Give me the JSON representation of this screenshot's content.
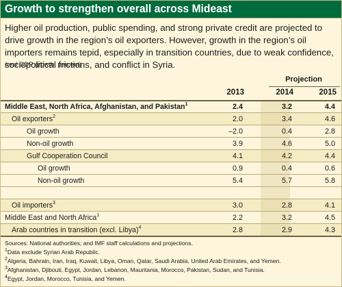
{
  "title": "Growth to strengthen overall across Mideast",
  "intro": "Higher oil production, public spending, and strong private credit are projected to drive growth in the region’s oil exporters. However, growth in the region’s oil importers remains tepid, especially in transition countries, due to weak confidence, sociopolitical frictions, and conflict in Syria.",
  "units": "(real GDP growth, percent)",
  "projection_label": "Projection",
  "years": [
    "2013",
    "2014",
    "2015"
  ],
  "rows": [
    {
      "label": "Middle East, North Africa, Afghanistan, and Pakistan",
      "sup": "1",
      "values": [
        "2.4",
        "3.2",
        "4.4"
      ]
    },
    {
      "label": "Oil exporters",
      "sup": "2",
      "values": [
        "2.0",
        "3.4",
        "4.6"
      ]
    },
    {
      "label": "Oil growth",
      "sup": "",
      "values": [
        "–2.0",
        "0.4",
        "2.8"
      ]
    },
    {
      "label": "Non-oil growth",
      "sup": "",
      "values": [
        "3.9",
        "4.6",
        "5.0"
      ]
    },
    {
      "label": "Gulf Cooperation Council",
      "sup": "",
      "values": [
        "4.1",
        "4.2",
        "4.4"
      ]
    },
    {
      "label": "Oil growth",
      "sup": "",
      "values": [
        "0.9",
        "0.4",
        "0.6"
      ]
    },
    {
      "label": "Non-oil growth",
      "sup": "",
      "values": [
        "5.4",
        "5.7",
        "5.8"
      ]
    },
    {
      "label": "Oil importers",
      "sup": "3",
      "values": [
        "3.0",
        "2.8",
        "4.1"
      ]
    },
    {
      "label": "Middle East and North Africa",
      "sup": "1",
      "values": [
        "2.2",
        "3.2",
        "4.5"
      ]
    },
    {
      "label": "Arab countries in transition (excl. Libya)",
      "sup": "4",
      "values": [
        "2.8",
        "2.9",
        "4.3"
      ]
    }
  ],
  "notes": {
    "source": "Sources: National authorities; and IMF staff calculations and projections.",
    "n1_mark": "1",
    "n1": "Data exclude Syrian Arab Republic.",
    "n2_mark": "2",
    "n2": "Algeria, Bahrain, Iran, Iraq, Kuwait, Libya, Oman, Qatar, Saudi Arabia, United Arab Emirates, and Yemen.",
    "n3_mark": "3",
    "n3": "Afghanistan, Djibouti, Egypt, Jordan, Lebanon, Mauritania, Morocco, Pakistan, Sudan, and Tunisia.",
    "n4_mark": "4",
    "n4": "Egypt, Jordan, Morocco, Tunisia, and Yemen."
  },
  "colors": {
    "title_bar": "#006b3c",
    "panel": "#fdf6dc",
    "row_highlight": "#f5ecc4"
  }
}
